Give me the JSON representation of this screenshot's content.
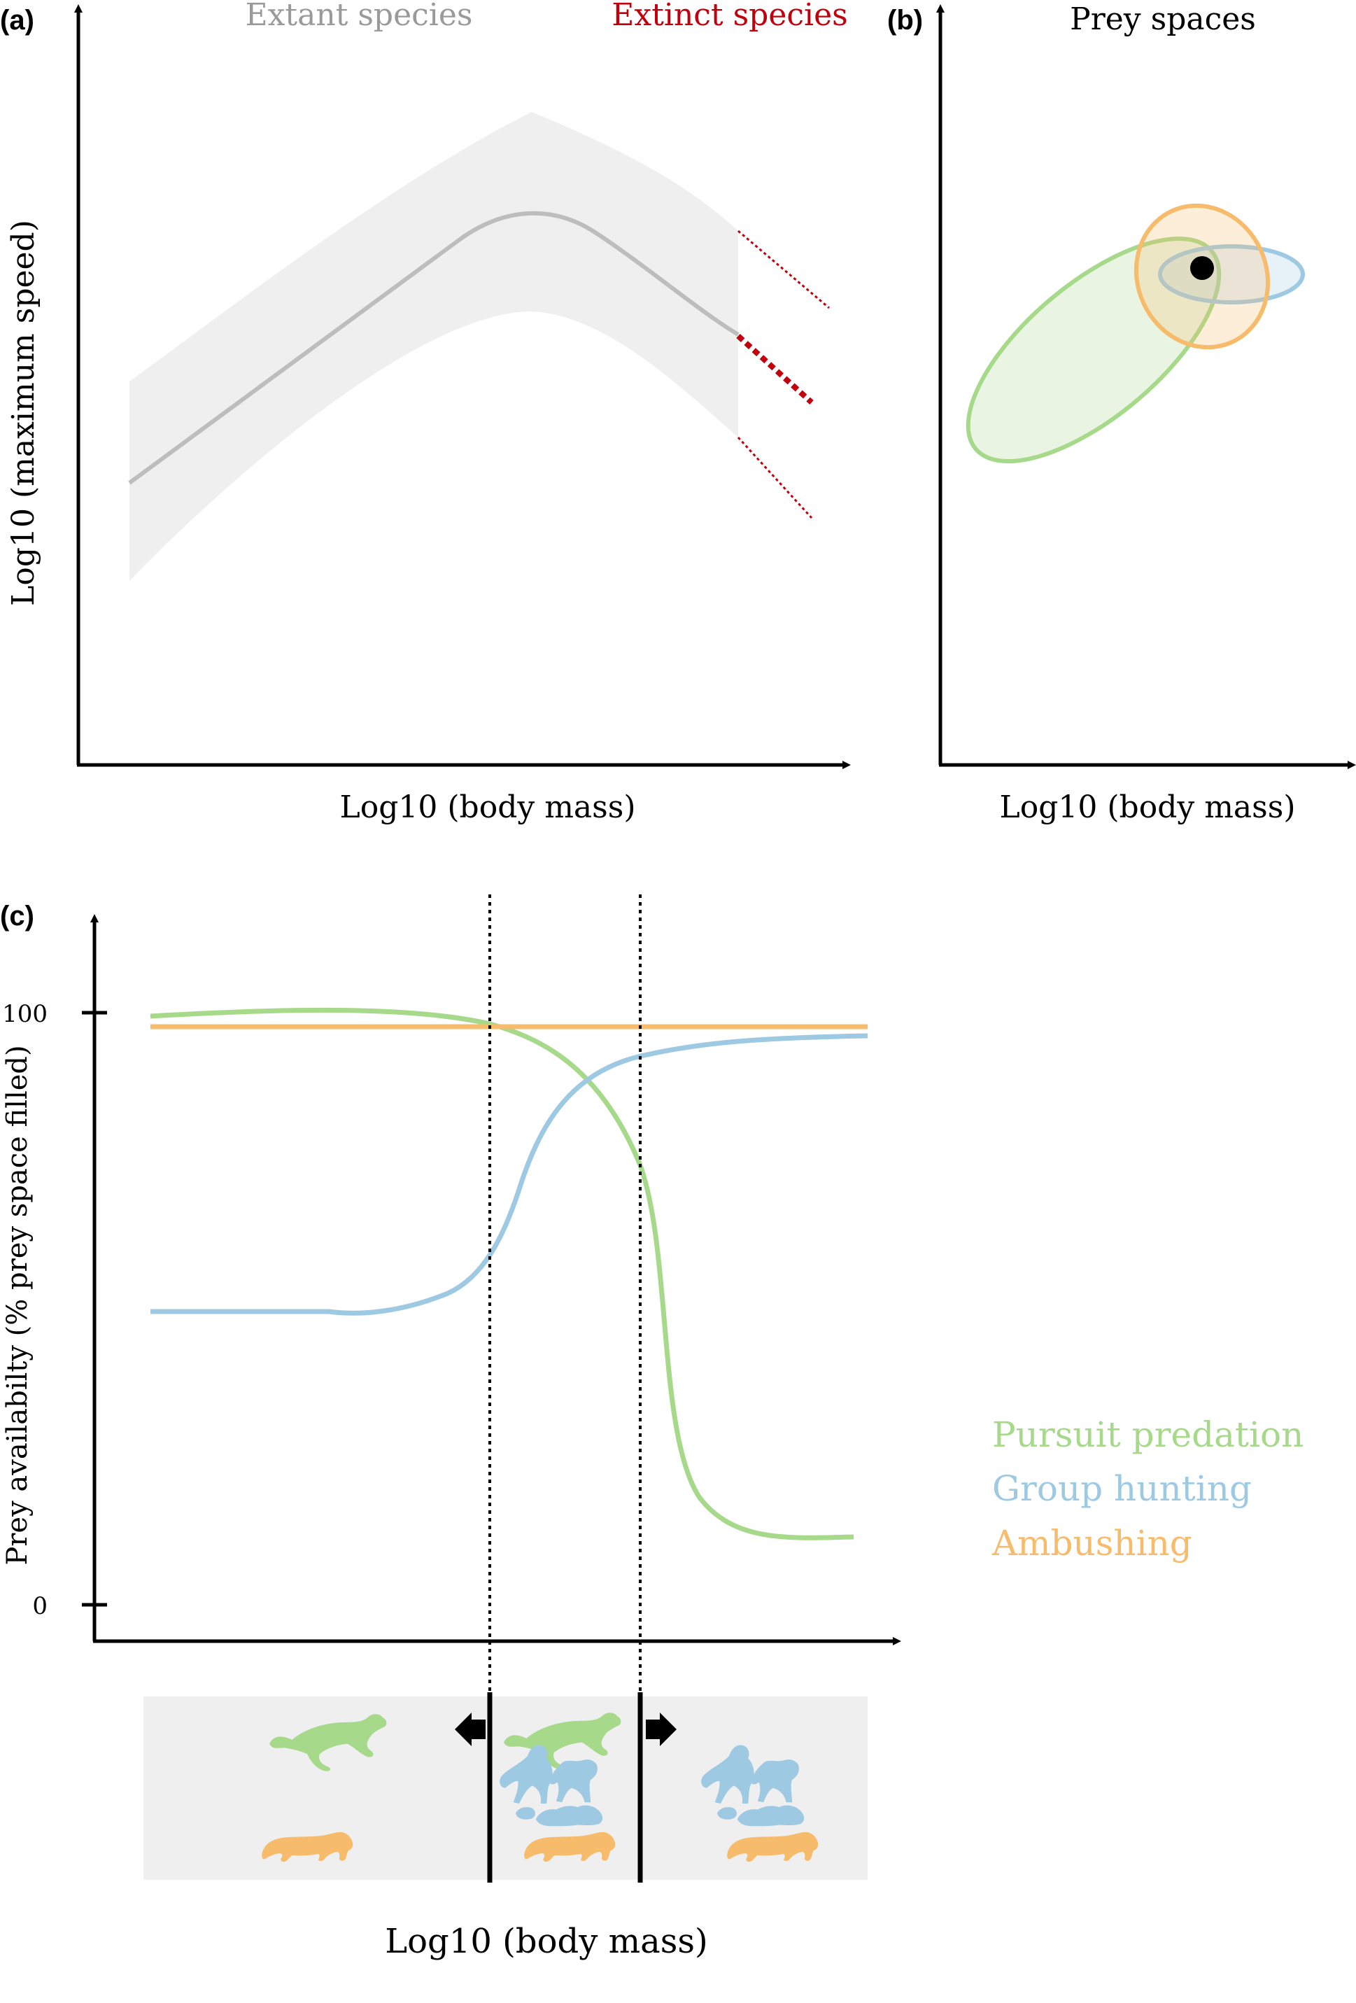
{
  "panel_a": {
    "label": "(a)",
    "legend_extant": "Extant species",
    "legend_extinct": "Extinct species",
    "x_label": "Log10 (body mass)",
    "y_label": "Log10 (maximum speed)"
  },
  "panel_b": {
    "label": "(b)",
    "title": "Prey spaces",
    "x_label": "Log10 (body mass)"
  },
  "panel_c": {
    "label": "(c)",
    "y_label": "Prey availabilty (% prey space filled)",
    "x_label": "Log10 (body mass)",
    "ytick_100": "100",
    "ytick_0": "0",
    "legend": [
      {
        "label": "Pursuit predation",
        "color": "#a6d98a"
      },
      {
        "label": "Group hunting",
        "color": "#9ec9e2"
      },
      {
        "label": "Ambushing",
        "color": "#f7bb6c"
      }
    ]
  },
  "colors": {
    "extant": "#9a9a9a",
    "extinct": "#c0000c",
    "band": "#efefef",
    "pursuit": "#a6d98a",
    "group": "#9ec9e2",
    "ambush": "#f7bb6c"
  },
  "icons": [
    "cheetah-icon",
    "lion-pride-icon",
    "leopard-icon",
    "left-arrow-icon",
    "right-arrow-icon"
  ]
}
